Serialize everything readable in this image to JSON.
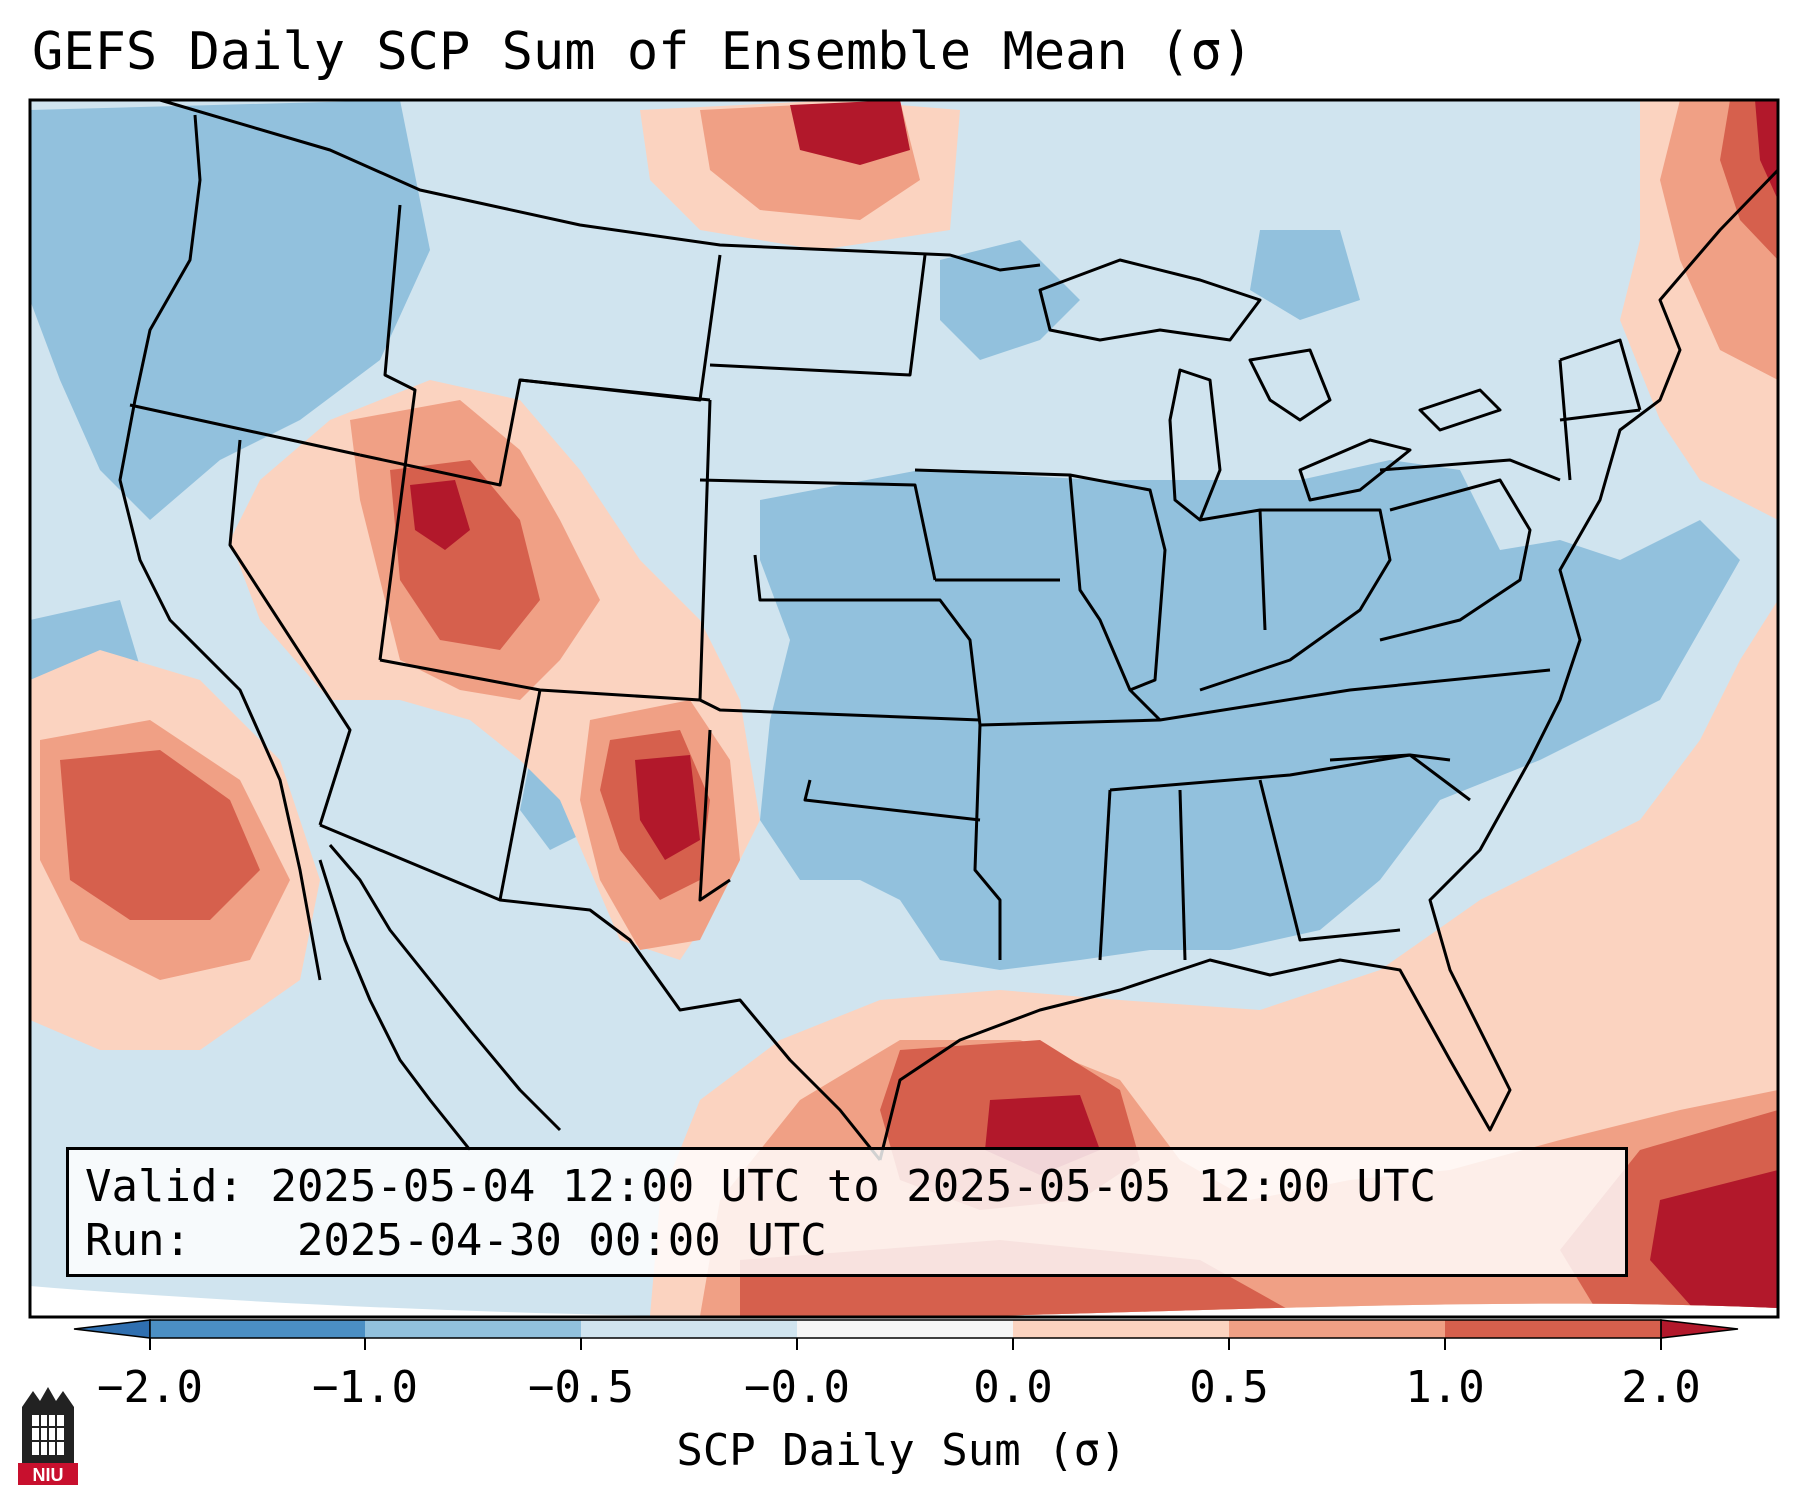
{
  "title": "GEFS Daily SCP Sum of Ensemble Mean (σ)",
  "info": {
    "valid_label": "Valid:",
    "valid_value": "2025-05-04 12:00 UTC to 2025-05-05 12:00 UTC",
    "run_label": "Run:",
    "run_value": "2025-04-30 00:00 UTC"
  },
  "colorbar": {
    "label": "SCP Daily Sum (σ)",
    "ticks": [
      "−2.0",
      "−1.0",
      "−0.5",
      "−0.0",
      "0.0",
      "0.5",
      "1.0",
      "2.0"
    ],
    "colors": {
      "under": "#2f6fb0",
      "b1": "#4b8fc4",
      "b2": "#92c1dd",
      "b3": "#d0e4ef",
      "b4": "#f5f5f5",
      "b5": "#fbd3c0",
      "b6": "#f0a085",
      "b7": "#d6604d",
      "over": "#b2182b"
    }
  },
  "logo": {
    "text": "NIU",
    "icon": "niu-tower-logo-icon"
  }
}
